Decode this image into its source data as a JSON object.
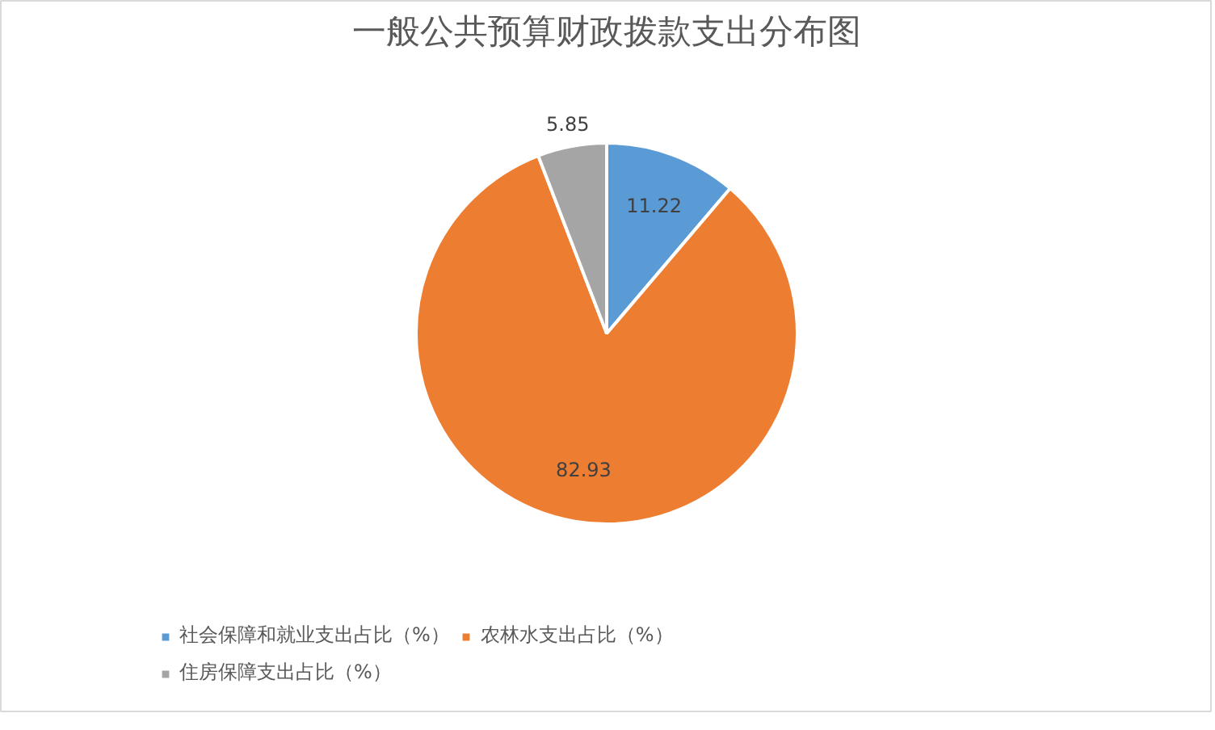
{
  "chart_data": {
    "type": "pie",
    "title": "一般公共预算财政拨款支出分布图",
    "categories": [
      "社会保障和就业支出占比（%）",
      "农林水支出占比（%）",
      "住房保障支出占比（%）"
    ],
    "values": [
      11.22,
      82.93,
      5.85
    ],
    "colors": [
      "#5b9bd5",
      "#ed7d31",
      "#a5a5a5"
    ],
    "data_labels": true,
    "legend": "bottom"
  }
}
